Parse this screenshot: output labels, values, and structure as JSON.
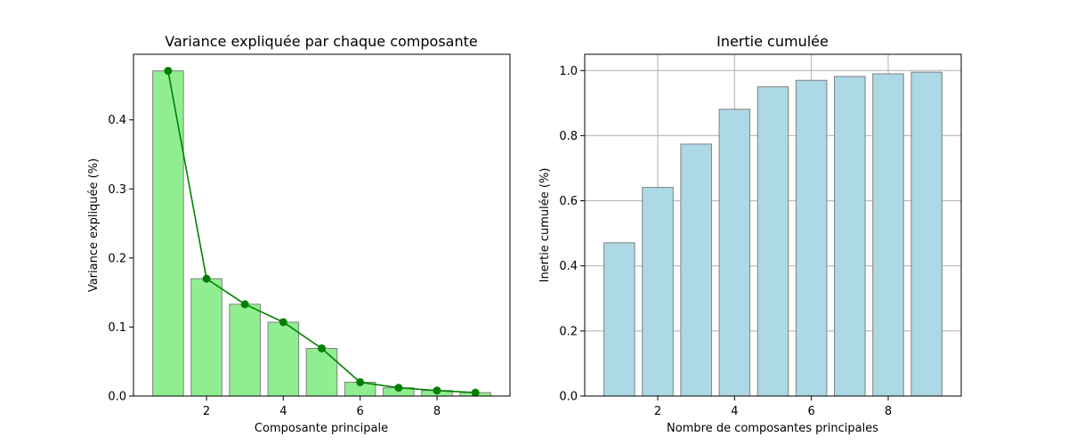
{
  "chart_data": [
    {
      "type": "bar",
      "title": "Variance expliquée par chaque composante",
      "xlabel": "Composante principale",
      "ylabel": "Variance expliquée (%)",
      "x": [
        1,
        2,
        3,
        4,
        5,
        6,
        7,
        8,
        9
      ],
      "values": [
        0.471,
        0.17,
        0.133,
        0.107,
        0.069,
        0.02,
        0.012,
        0.008,
        0.005
      ],
      "line_values": [
        0.471,
        0.17,
        0.133,
        0.107,
        0.069,
        0.02,
        0.012,
        0.008,
        0.005
      ],
      "xlim": [
        0.1,
        9.9
      ],
      "ylim": [
        0,
        0.495
      ],
      "xticks": [
        2,
        4,
        6,
        8
      ],
      "xtick_labels": [
        "2",
        "4",
        "6",
        "8"
      ],
      "yticks": [
        0,
        0.1,
        0.2,
        0.3,
        0.4
      ],
      "ytick_labels": [
        "0.0",
        "0.1",
        "0.2",
        "0.3",
        "0.4"
      ],
      "grid": false,
      "bar_color": "#90ee90",
      "bar_edge_color": "#808080",
      "line_color": "#008000"
    },
    {
      "type": "bar",
      "title": "Inertie cumulée",
      "xlabel": "Nombre de composantes principales",
      "ylabel": "Inertie cumulée (%)",
      "x": [
        1,
        2,
        3,
        4,
        5,
        6,
        7,
        8,
        9
      ],
      "values": [
        0.471,
        0.641,
        0.774,
        0.881,
        0.95,
        0.97,
        0.982,
        0.99,
        0.995
      ],
      "xlim": [
        0.1,
        9.9
      ],
      "ylim": [
        0,
        1.05
      ],
      "xticks": [
        2,
        4,
        6,
        8
      ],
      "xtick_labels": [
        "2",
        "4",
        "6",
        "8"
      ],
      "yticks": [
        0,
        0.2,
        0.4,
        0.6,
        0.8,
        1.0
      ],
      "ytick_labels": [
        "0.0",
        "0.2",
        "0.4",
        "0.6",
        "0.8",
        "1.0"
      ],
      "grid": true,
      "bar_color": "#add8e6",
      "bar_edge_color": "#808080"
    }
  ]
}
